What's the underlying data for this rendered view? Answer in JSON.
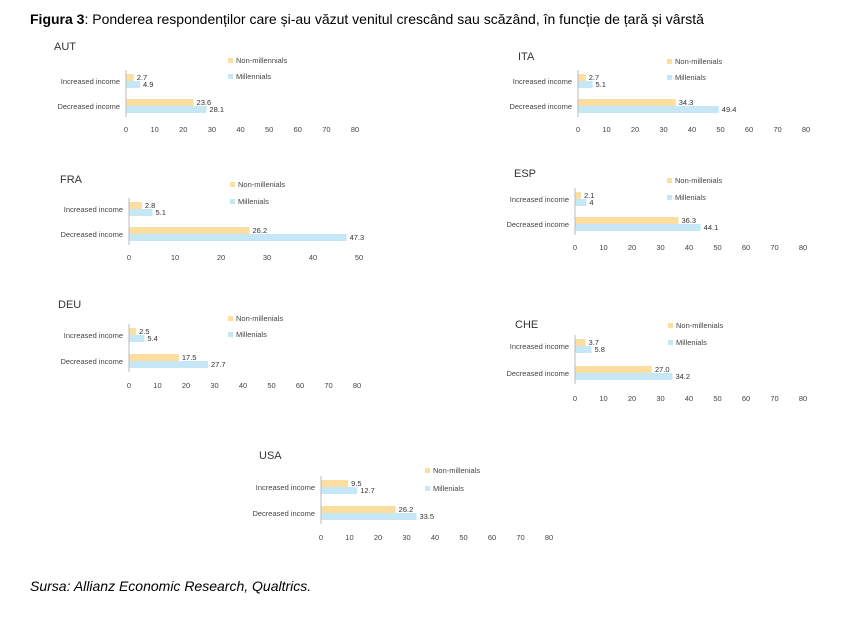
{
  "title": {
    "prefix": "Figura 3",
    "text": ": Ponderea respondenților care și-au văzut venitul crescând sau scăzând, în funcție de țară și vârstă"
  },
  "source": "Sursa: Allianz Economic Research, Qualtrics.",
  "colors": {
    "non_millennials": "#FCDFA0",
    "millennials": "#C6E7F5"
  },
  "chart_data": [
    {
      "type": "bar",
      "orientation": "horizontal",
      "country": "AUT",
      "categories": [
        "Increased income",
        "Decreased income"
      ],
      "series": [
        {
          "name": "Non-millennials",
          "values": [
            2.7,
            23.6
          ]
        },
        {
          "name": "Millennials",
          "values": [
            4.9,
            28.1
          ]
        }
      ],
      "ticks": [
        "0",
        "10",
        "20",
        "30",
        "40",
        "50",
        "60",
        "70",
        "80"
      ],
      "xlim": [
        0,
        80
      ]
    },
    {
      "type": "bar",
      "orientation": "horizontal",
      "country": "ITA",
      "categories": [
        "Increased income",
        "Decreased income"
      ],
      "series": [
        {
          "name": "Non-millenials",
          "values": [
            2.7,
            34.3
          ]
        },
        {
          "name": "Millenials",
          "values": [
            5.1,
            49.4
          ]
        }
      ],
      "ticks": [
        "0",
        "10",
        "20",
        "30",
        "40",
        "50",
        "60",
        "70",
        "80"
      ],
      "xlim": [
        0,
        80
      ]
    },
    {
      "type": "bar",
      "orientation": "horizontal",
      "country": "FRA",
      "categories": [
        "Increased income",
        "Decreased income"
      ],
      "series": [
        {
          "name": "Non-millenials",
          "values": [
            2.8,
            26.2
          ]
        },
        {
          "name": "Millenials",
          "values": [
            5.1,
            47.3
          ]
        }
      ],
      "ticks": [
        "0",
        "10",
        "20",
        "30",
        "40",
        "50"
      ],
      "xlim": [
        0,
        50
      ]
    },
    {
      "type": "bar",
      "orientation": "horizontal",
      "country": "ESP",
      "categories": [
        "Increased income",
        "Decreased income"
      ],
      "series": [
        {
          "name": "Non-millenials",
          "values": [
            2.1,
            36.3
          ]
        },
        {
          "name": "Millenials",
          "values": [
            4.0,
            44.1
          ]
        }
      ],
      "ticks": [
        "0",
        "10",
        "20",
        "30",
        "40",
        "50",
        "60",
        "70",
        "80"
      ],
      "xlim": [
        0,
        80
      ]
    },
    {
      "type": "bar",
      "orientation": "horizontal",
      "country": "DEU",
      "categories": [
        "Increased income",
        "Decreased income"
      ],
      "series": [
        {
          "name": "Non-millenials",
          "values": [
            2.5,
            17.5
          ]
        },
        {
          "name": "Millenials",
          "values": [
            5.4,
            27.7
          ]
        }
      ],
      "ticks": [
        "0",
        "10",
        "20",
        "30",
        "40",
        "50",
        "60",
        "70",
        "80"
      ],
      "xlim": [
        0,
        80
      ]
    },
    {
      "type": "bar",
      "orientation": "horizontal",
      "country": "CHE",
      "categories": [
        "Increased income",
        "Decreased income"
      ],
      "series": [
        {
          "name": "Non-millenials",
          "values": [
            3.7,
            27.0
          ]
        },
        {
          "name": "Millenials",
          "values": [
            5.8,
            34.2
          ]
        }
      ],
      "ticks": [
        "0",
        "10",
        "20",
        "30",
        "40",
        "50",
        "60",
        "70",
        "80"
      ],
      "xlim": [
        0,
        80
      ]
    },
    {
      "type": "bar",
      "orientation": "horizontal",
      "country": "USA",
      "categories": [
        "Increased income",
        "Decreased income"
      ],
      "series": [
        {
          "name": "Non-millenials",
          "values": [
            9.5,
            26.2
          ]
        },
        {
          "name": "Millenials",
          "values": [
            12.7,
            33.5
          ]
        }
      ],
      "ticks": [
        "0",
        "10",
        "20",
        "30",
        "40",
        "50",
        "60",
        "70",
        "80"
      ],
      "xlim": [
        0,
        80
      ]
    }
  ]
}
